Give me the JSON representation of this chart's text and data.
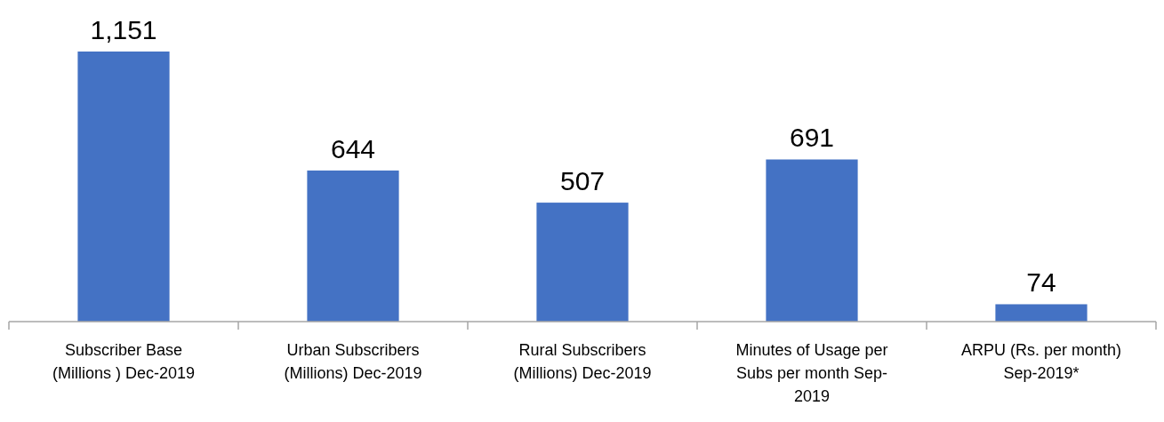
{
  "chart_data": {
    "type": "bar",
    "categories": [
      "Subscriber Base (Millions ) Dec-2019",
      "Urban Subscribers (Millions) Dec-2019",
      "Rural Subscribers (Millions) Dec-2019",
      "Minutes of Usage per Subs per month Sep- 2019",
      "ARPU (Rs. per month) Sep-2019*"
    ],
    "values": [
      1151,
      644,
      507,
      691,
      74
    ],
    "value_labels": [
      "1,151",
      "644",
      "507",
      "691",
      "74"
    ],
    "color": "#4472c4"
  }
}
